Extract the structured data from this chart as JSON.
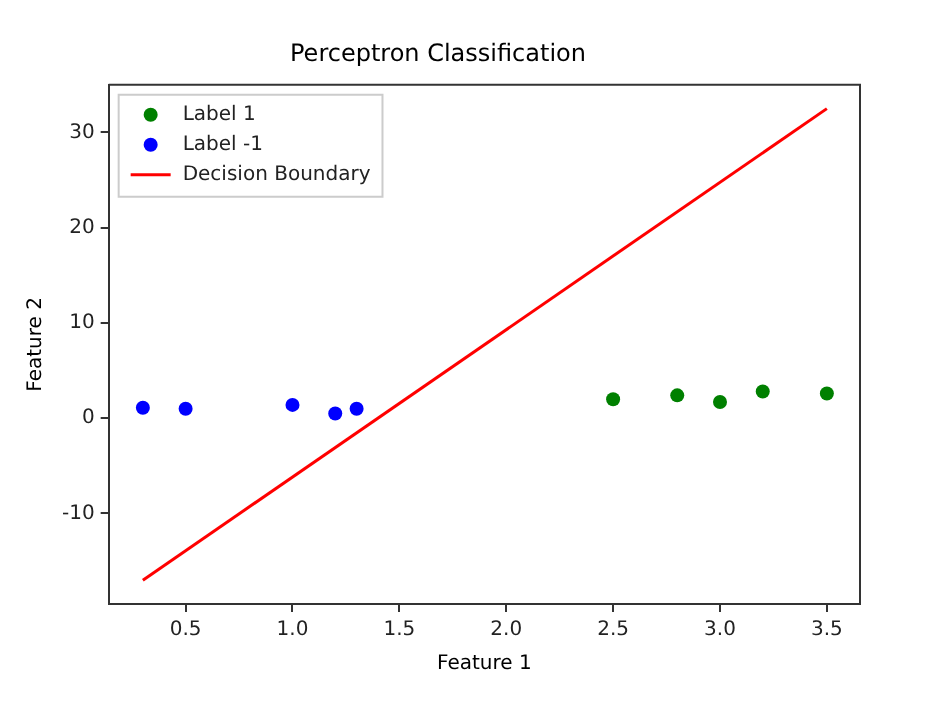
{
  "chart_data": {
    "type": "scatter",
    "title": "Perceptron Classification",
    "xlabel": "Feature 1",
    "ylabel": "Feature 2",
    "xlim": [
      0.14,
      3.655
    ],
    "xticks": [
      {
        "value": 0.5,
        "label": "0.5"
      },
      {
        "value": 1.0,
        "label": "1.0"
      },
      {
        "value": 1.5,
        "label": "1.5"
      },
      {
        "value": 2.0,
        "label": "2.0"
      },
      {
        "value": 2.5,
        "label": "2.5"
      },
      {
        "value": 3.0,
        "label": "3.0"
      },
      {
        "value": 3.5,
        "label": "3.5"
      }
    ],
    "ylim": [
      -19.5,
      35
    ],
    "yticks": [
      -10,
      0,
      10,
      20,
      30
    ],
    "grid": false,
    "legend": "top left",
    "marker": "circle",
    "series": [
      {
        "name": "Label 1",
        "color": "#008000",
        "x": [
          2.5,
          2.8,
          3.0,
          3.2,
          3.5
        ],
        "values": [
          2.0,
          2.4,
          1.7,
          2.8,
          2.6
        ]
      },
      {
        "name": "Label -1",
        "color": "#0000ff",
        "x": [
          0.3,
          0.5,
          1.0,
          1.2,
          1.3
        ],
        "values": [
          1.1,
          1.0,
          1.4,
          0.5,
          1.0
        ]
      },
      {
        "name": "Decision Boundary",
        "type": "line",
        "color": "#ff0000",
        "x": [
          0.3,
          3.5
        ],
        "values": [
          -17.0,
          32.5
        ],
        "line_style": "solid",
        "marker": "none"
      }
    ]
  }
}
